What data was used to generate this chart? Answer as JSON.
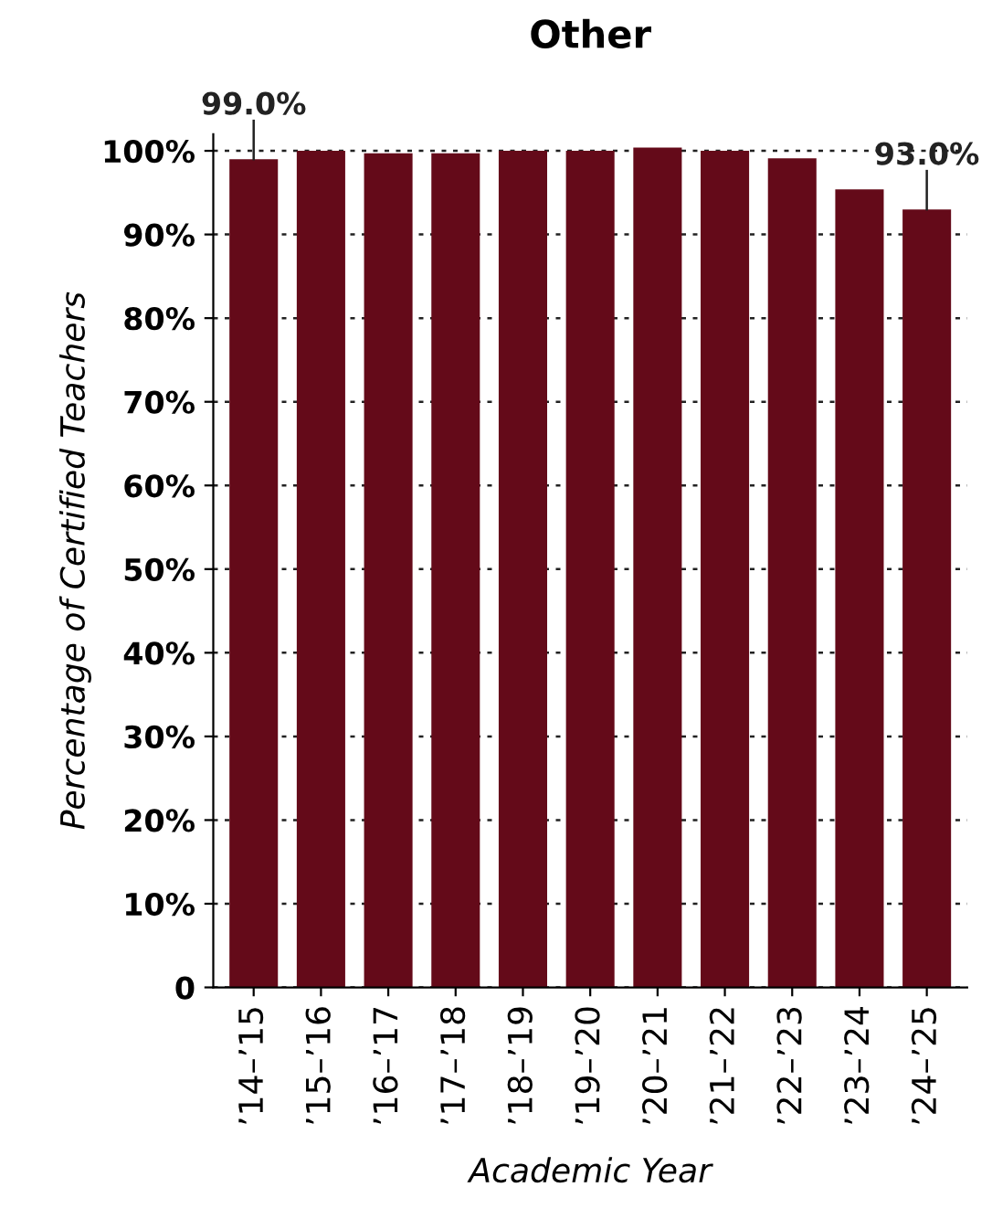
{
  "chart_data": {
    "type": "bar",
    "title": "Other",
    "xlabel": "Academic Year",
    "ylabel": "Percentage of Certified Teachers",
    "categories": [
      "’14–’15",
      "’15–’16",
      "’16–’17",
      "’17–’18",
      "’18–’19",
      "’19–’20",
      "’20–’21",
      "’21–’22",
      "’22–’23",
      "’23–’24",
      "’24–’25"
    ],
    "values": [
      99.0,
      100,
      99.7,
      99.7,
      100,
      100,
      100.4,
      100,
      99.1,
      95.4,
      93.0
    ],
    "value_labels": [
      "99.0%",
      null,
      null,
      null,
      null,
      null,
      null,
      null,
      null,
      null,
      "93.0%"
    ],
    "color": "#640a19",
    "ylim": [
      0,
      102
    ],
    "yticks": [
      {
        "value": 0,
        "label": "0"
      },
      {
        "value": 10,
        "label": "10%"
      },
      {
        "value": 20,
        "label": "20%"
      },
      {
        "value": 30,
        "label": "30%"
      },
      {
        "value": 40,
        "label": "40%"
      },
      {
        "value": 50,
        "label": "50%"
      },
      {
        "value": 60,
        "label": "60%"
      },
      {
        "value": 70,
        "label": "70%"
      },
      {
        "value": 80,
        "label": "80%"
      },
      {
        "value": 90,
        "label": "90%"
      },
      {
        "value": 100,
        "label": "100%"
      }
    ],
    "grid": "y"
  }
}
